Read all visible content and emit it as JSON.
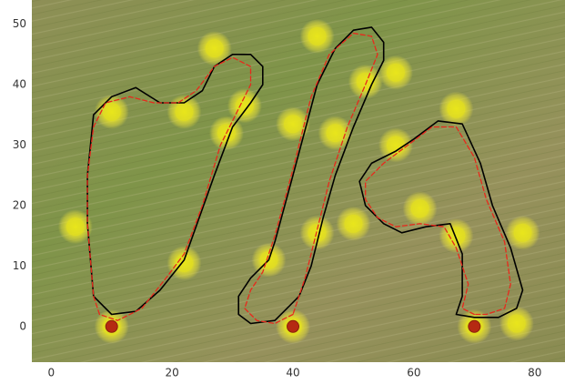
{
  "chart_data": {
    "type": "scatter",
    "xlim": [
      -3.2,
      85
    ],
    "ylim": [
      -5.9,
      54
    ],
    "xticks": [
      0,
      20,
      40,
      60,
      80
    ],
    "yticks": [
      0,
      10,
      20,
      30,
      40,
      50
    ],
    "grid": false,
    "series": [
      {
        "style": "glow",
        "color": "#e6e21a",
        "x": [
          4,
          10,
          22,
          27,
          29,
          32,
          22,
          36,
          40,
          44,
          44,
          47,
          50,
          52,
          57,
          57,
          61,
          67,
          67,
          78,
          77,
          10,
          40,
          70
        ],
        "y": [
          16.5,
          35.5,
          35.5,
          46,
          32,
          36.5,
          10.5,
          11,
          33.5,
          48,
          15.5,
          32,
          17,
          40.5,
          42,
          30,
          19.5,
          36,
          15,
          15.5,
          0.5,
          0,
          0,
          0
        ]
      },
      {
        "style": "dot",
        "color": "#b52a12",
        "x": [
          10,
          40,
          70
        ],
        "y": [
          0,
          0,
          0
        ]
      },
      {
        "style": "line",
        "color": "#000000",
        "dashed": false,
        "x": [
          7,
          10,
          14,
          18,
          22,
          27,
          30,
          33,
          35,
          35,
          33,
          30,
          27,
          25,
          22,
          18,
          14,
          10,
          7,
          6,
          6,
          7,
          null,
          39,
          37,
          33,
          31,
          31,
          33,
          36,
          37,
          40,
          44,
          47,
          50,
          53,
          55,
          55,
          53,
          50,
          47,
          45,
          43,
          41,
          39,
          null,
          70,
          67,
          68,
          68,
          66,
          62,
          58,
          55,
          52,
          51,
          53,
          57,
          60,
          64,
          68,
          71,
          73,
          76,
          78,
          77,
          74,
          70
        ],
        "y": [
          5,
          2,
          2.5,
          6,
          11,
          25,
          33,
          37,
          40,
          43,
          45,
          45,
          43,
          39,
          37,
          37,
          39.5,
          38,
          35,
          25,
          17,
          5,
          null,
          3,
          1,
          0.5,
          2,
          5,
          8,
          11,
          14,
          25,
          40,
          46,
          49,
          49.5,
          47,
          44,
          40,
          33,
          25,
          18,
          10,
          5,
          3,
          null,
          1.5,
          2,
          5,
          12,
          17,
          16.5,
          15.5,
          17,
          20,
          24,
          27,
          29,
          31,
          34,
          33.5,
          27,
          20,
          13,
          6,
          3,
          1.5,
          1.5
        ]
      },
      {
        "style": "line",
        "color": "#e8291c",
        "dashed": true,
        "x": [
          7,
          8,
          11,
          15,
          19,
          22,
          25,
          28,
          31,
          33,
          33,
          30,
          27,
          24,
          21,
          17,
          13,
          9,
          7,
          6,
          6,
          7,
          null,
          40,
          37,
          34,
          32,
          33,
          35,
          37,
          40,
          43,
          46,
          50,
          53,
          54,
          52,
          49,
          46,
          44,
          42,
          40,
          null,
          70,
          68,
          69,
          67,
          65,
          61,
          57,
          54,
          52,
          52,
          55,
          59,
          63,
          67,
          70,
          72,
          75,
          76,
          75,
          72,
          70
        ],
        "y": [
          5,
          2,
          1,
          3,
          8,
          12,
          20,
          30,
          36,
          40,
          43,
          44.5,
          43,
          39,
          37,
          37,
          38,
          37,
          33,
          25,
          17,
          5,
          null,
          2,
          0.5,
          1,
          3,
          6,
          9,
          15,
          26,
          38,
          45,
          48.5,
          48,
          45,
          40,
          33,
          24,
          16,
          8,
          2,
          null,
          2,
          3,
          7,
          13,
          16.5,
          17,
          16.5,
          18,
          21,
          24,
          27,
          30,
          33,
          33,
          28,
          21,
          14,
          7,
          3,
          2,
          2
        ]
      }
    ]
  }
}
